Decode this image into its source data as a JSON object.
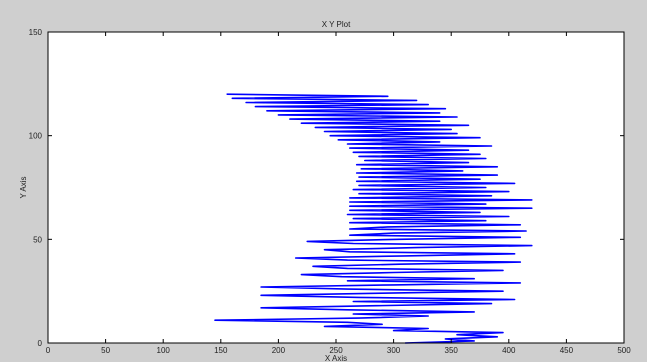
{
  "window": {
    "background": "#cfcfcf"
  },
  "chart_data": {
    "type": "line",
    "title": "X Y Plot",
    "xlabel": "X Axis",
    "ylabel": "Y Axis",
    "xlim": [
      0,
      500
    ],
    "ylim": [
      0,
      150
    ],
    "x_ticks": [
      "0",
      "50",
      "100",
      "150",
      "200",
      "250",
      "300",
      "350",
      "400",
      "450",
      "500"
    ],
    "y_ticks": [
      "0",
      "50",
      "100",
      "150"
    ],
    "grid": false,
    "legend": "none",
    "line_color": "#0000ff",
    "series": [
      {
        "values": [
          {
            "y": 0,
            "x": 310
          },
          {
            "y": 1,
            "x": 370
          },
          {
            "y": 2,
            "x": 345
          },
          {
            "y": 3,
            "x": 390
          },
          {
            "y": 4,
            "x": 355
          },
          {
            "y": 5,
            "x": 395
          },
          {
            "y": 6,
            "x": 300
          },
          {
            "y": 7,
            "x": 330
          },
          {
            "y": 8,
            "x": 240
          },
          {
            "y": 9,
            "x": 290
          },
          {
            "y": 10,
            "x": 260
          },
          {
            "y": 11,
            "x": 145
          },
          {
            "y": 12,
            "x": 270
          },
          {
            "y": 13,
            "x": 330
          },
          {
            "y": 14,
            "x": 265
          },
          {
            "y": 15,
            "x": 370
          },
          {
            "y": 16,
            "x": 260
          },
          {
            "y": 17,
            "x": 185
          },
          {
            "y": 18,
            "x": 285
          },
          {
            "y": 19,
            "x": 385
          },
          {
            "y": 20,
            "x": 265
          },
          {
            "y": 21,
            "x": 405
          },
          {
            "y": 22,
            "x": 270
          },
          {
            "y": 23,
            "x": 185
          },
          {
            "y": 24,
            "x": 290
          },
          {
            "y": 25,
            "x": 395
          },
          {
            "y": 26,
            "x": 260
          },
          {
            "y": 27,
            "x": 185
          },
          {
            "y": 28,
            "x": 300
          },
          {
            "y": 29,
            "x": 410
          },
          {
            "y": 30,
            "x": 260
          },
          {
            "y": 31,
            "x": 370
          },
          {
            "y": 32,
            "x": 255
          },
          {
            "y": 33,
            "x": 220
          },
          {
            "y": 34,
            "x": 300
          },
          {
            "y": 35,
            "x": 395
          },
          {
            "y": 36,
            "x": 260
          },
          {
            "y": 37,
            "x": 230
          },
          {
            "y": 38,
            "x": 305
          },
          {
            "y": 39,
            "x": 410
          },
          {
            "y": 40,
            "x": 260
          },
          {
            "y": 41,
            "x": 215
          },
          {
            "y": 42,
            "x": 310
          },
          {
            "y": 43,
            "x": 405
          },
          {
            "y": 44,
            "x": 262
          },
          {
            "y": 45,
            "x": 240
          },
          {
            "y": 46,
            "x": 320
          },
          {
            "y": 47,
            "x": 420
          },
          {
            "y": 48,
            "x": 265
          },
          {
            "y": 49,
            "x": 225
          },
          {
            "y": 50,
            "x": 305
          },
          {
            "y": 51,
            "x": 410
          },
          {
            "y": 52,
            "x": 262
          },
          {
            "y": 53,
            "x": 300
          },
          {
            "y": 54,
            "x": 415
          },
          {
            "y": 55,
            "x": 262
          },
          {
            "y": 56,
            "x": 295
          },
          {
            "y": 57,
            "x": 410
          },
          {
            "y": 58,
            "x": 262
          },
          {
            "y": 59,
            "x": 380
          },
          {
            "y": 60,
            "x": 265
          },
          {
            "y": 61,
            "x": 400
          },
          {
            "y": 62,
            "x": 260
          },
          {
            "y": 63,
            "x": 375
          },
          {
            "y": 64,
            "x": 262
          },
          {
            "y": 65,
            "x": 420
          },
          {
            "y": 66,
            "x": 262
          },
          {
            "y": 67,
            "x": 380
          },
          {
            "y": 68,
            "x": 262
          },
          {
            "y": 69,
            "x": 420
          },
          {
            "y": 70,
            "x": 262
          },
          {
            "y": 71,
            "x": 385
          },
          {
            "y": 72,
            "x": 270
          },
          {
            "y": 73,
            "x": 400
          },
          {
            "y": 74,
            "x": 265
          },
          {
            "y": 75,
            "x": 380
          },
          {
            "y": 76,
            "x": 270
          },
          {
            "y": 77,
            "x": 405
          },
          {
            "y": 78,
            "x": 268
          },
          {
            "y": 79,
            "x": 375
          },
          {
            "y": 80,
            "x": 270
          },
          {
            "y": 81,
            "x": 390
          },
          {
            "y": 82,
            "x": 268
          },
          {
            "y": 83,
            "x": 360
          },
          {
            "y": 84,
            "x": 272
          },
          {
            "y": 85,
            "x": 390
          },
          {
            "y": 86,
            "x": 268
          },
          {
            "y": 87,
            "x": 365
          },
          {
            "y": 88,
            "x": 275
          },
          {
            "y": 89,
            "x": 380
          },
          {
            "y": 90,
            "x": 270
          },
          {
            "y": 91,
            "x": 375
          },
          {
            "y": 92,
            "x": 265
          },
          {
            "y": 93,
            "x": 365
          },
          {
            "y": 94,
            "x": 262
          },
          {
            "y": 95,
            "x": 385
          },
          {
            "y": 96,
            "x": 260
          },
          {
            "y": 97,
            "x": 340
          },
          {
            "y": 98,
            "x": 252
          },
          {
            "y": 99,
            "x": 375
          },
          {
            "y": 100,
            "x": 245
          },
          {
            "y": 101,
            "x": 355
          },
          {
            "y": 102,
            "x": 240
          },
          {
            "y": 103,
            "x": 350
          },
          {
            "y": 104,
            "x": 232
          },
          {
            "y": 105,
            "x": 365
          },
          {
            "y": 106,
            "x": 220
          },
          {
            "y": 107,
            "x": 340
          },
          {
            "y": 108,
            "x": 210
          },
          {
            "y": 109,
            "x": 355
          },
          {
            "y": 110,
            "x": 200
          },
          {
            "y": 111,
            "x": 340
          },
          {
            "y": 112,
            "x": 190
          },
          {
            "y": 113,
            "x": 345
          },
          {
            "y": 114,
            "x": 180
          },
          {
            "y": 115,
            "x": 330
          },
          {
            "y": 116,
            "x": 172
          },
          {
            "y": 117,
            "x": 320
          },
          {
            "y": 118,
            "x": 160
          },
          {
            "y": 119,
            "x": 295
          },
          {
            "y": 120,
            "x": 155
          }
        ]
      }
    ]
  }
}
